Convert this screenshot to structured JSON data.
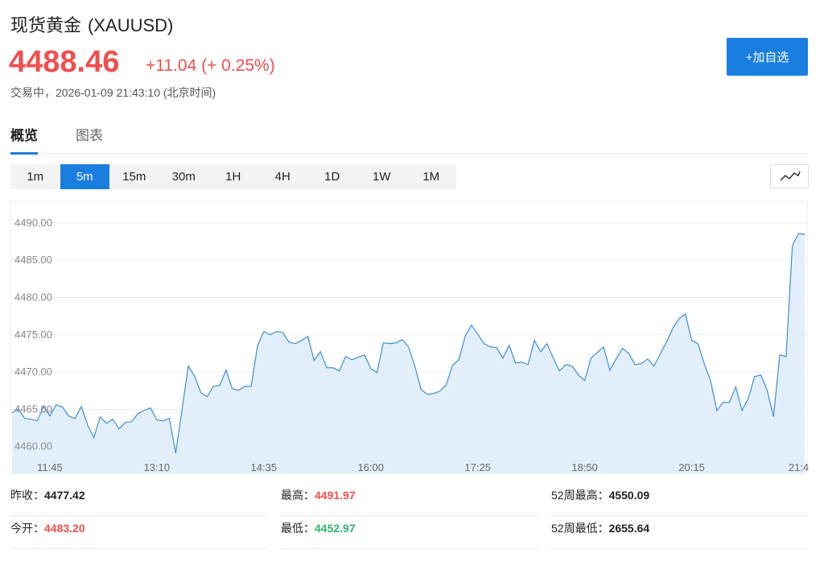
{
  "header": {
    "title": "现货黄金",
    "code": "(XAUUSD)",
    "price": "4488.46",
    "change": "+11.04 (+ 0.25%)",
    "status": "交易中，2026-01-09 21:43:10 (北京时间)",
    "button": "+加自选"
  },
  "tabs": {
    "items": [
      "概览",
      "图表"
    ],
    "active": 0
  },
  "intervals": {
    "items": [
      "1m",
      "5m",
      "15m",
      "30m",
      "1H",
      "4H",
      "1D",
      "1W",
      "1M"
    ],
    "active": 1
  },
  "chart_data": {
    "type": "area",
    "color": "#3d8ed8",
    "fill": "#e2effb",
    "grid": true,
    "categories": [
      null,
      null,
      null,
      null,
      null,
      null,
      "11:45",
      null,
      null,
      null,
      null,
      null,
      null,
      null,
      null,
      null,
      null,
      null,
      null,
      null,
      null,
      null,
      null,
      "13:10",
      null,
      null,
      null,
      null,
      null,
      null,
      null,
      null,
      null,
      null,
      null,
      null,
      null,
      null,
      null,
      null,
      "14:35",
      null,
      null,
      null,
      null,
      null,
      null,
      null,
      null,
      null,
      null,
      null,
      null,
      null,
      null,
      null,
      null,
      "16:00",
      null,
      null,
      null,
      null,
      null,
      null,
      null,
      null,
      null,
      null,
      null,
      null,
      null,
      null,
      null,
      null,
      "17:25",
      null,
      null,
      null,
      null,
      null,
      null,
      null,
      null,
      null,
      null,
      null,
      null,
      null,
      null,
      null,
      null,
      "18:50",
      null,
      null,
      null,
      null,
      null,
      null,
      null,
      null,
      null,
      null,
      null,
      null,
      null,
      null,
      null,
      null,
      "20:15",
      null,
      null,
      null,
      null,
      null,
      null,
      null,
      null,
      null,
      null,
      null,
      null,
      null,
      null,
      null,
      null,
      "21:4",
      null
    ],
    "values": [
      4464.53,
      4465.07,
      4463.78,
      4463.67,
      4463.45,
      4465.39,
      4464.1,
      4465.61,
      4465.29,
      4464.1,
      4463.78,
      4465.39,
      4462.91,
      4461.19,
      4463.99,
      4463.13,
      4463.67,
      4462.37,
      4463.24,
      4463.34,
      4464.42,
      4464.85,
      4465.18,
      4463.56,
      4463.45,
      4463.78,
      4459.14,
      4464.85,
      4470.79,
      4469.49,
      4467.23,
      4466.69,
      4468.09,
      4468.2,
      4470.25,
      4467.77,
      4467.55,
      4468.09,
      4468.09,
      4473.48,
      4475.43,
      4474.99,
      4475.43,
      4475.32,
      4474.02,
      4473.81,
      4474.24,
      4474.78,
      4471.54,
      4472.73,
      4470.57,
      4470.57,
      4470.14,
      4472.08,
      4471.65,
      4471.97,
      4472.3,
      4470.46,
      4469.92,
      4473.92,
      4473.81,
      4473.92,
      4474.35,
      4473.38,
      4470.79,
      4467.66,
      4467.01,
      4467.12,
      4467.44,
      4468.31,
      4470.9,
      4471.65,
      4474.78,
      4476.29,
      4475.1,
      4473.81,
      4473.38,
      4473.27,
      4471.87,
      4473.59,
      4471.22,
      4471.33,
      4471.0,
      4474.24,
      4472.73,
      4473.81,
      4471.87,
      4470.14,
      4471.0,
      4470.79,
      4469.6,
      4468.85,
      4471.87,
      4472.62,
      4473.38,
      4470.25,
      4471.76,
      4473.16,
      4472.51,
      4471.0,
      4471.11,
      4471.76,
      4470.79,
      4472.41,
      4474.02,
      4475.86,
      4477.15,
      4477.8,
      4474.24,
      4473.81,
      4471.11,
      4468.85,
      4464.85,
      4465.93,
      4465.93,
      4467.98,
      4464.85,
      4466.47,
      4469.39,
      4469.6,
      4467.55,
      4463.99,
      4472.3,
      4472.08,
      4486.97,
      4488.59,
      4488.46
    ],
    "ylim": [
      4456.4,
      4492.9
    ],
    "yticks": [
      {
        "value": 4460,
        "label": "4460.00"
      },
      {
        "value": 4465,
        "label": "4465.00"
      },
      {
        "value": 4470,
        "label": "4470.00"
      },
      {
        "value": 4475,
        "label": "4475.00"
      },
      {
        "value": 4480,
        "label": "4480.00"
      },
      {
        "value": 4485,
        "label": "4485.00"
      },
      {
        "value": 4490,
        "label": "4490.00"
      }
    ]
  },
  "stats": [
    {
      "label": "昨收：",
      "value": "4477.42",
      "color": "#222222"
    },
    {
      "label": "最高：",
      "value": "4491.97",
      "color": "#f04f4f"
    },
    {
      "label": "52周最高：",
      "value": "4550.09",
      "color": "#222222"
    },
    {
      "label": "今开：",
      "value": "4483.20",
      "color": "#f04f4f"
    },
    {
      "label": "最低：",
      "value": "4452.97",
      "color": "#2fb36f"
    },
    {
      "label": "52周最低：",
      "value": "2655.64",
      "color": "#222222"
    }
  ]
}
